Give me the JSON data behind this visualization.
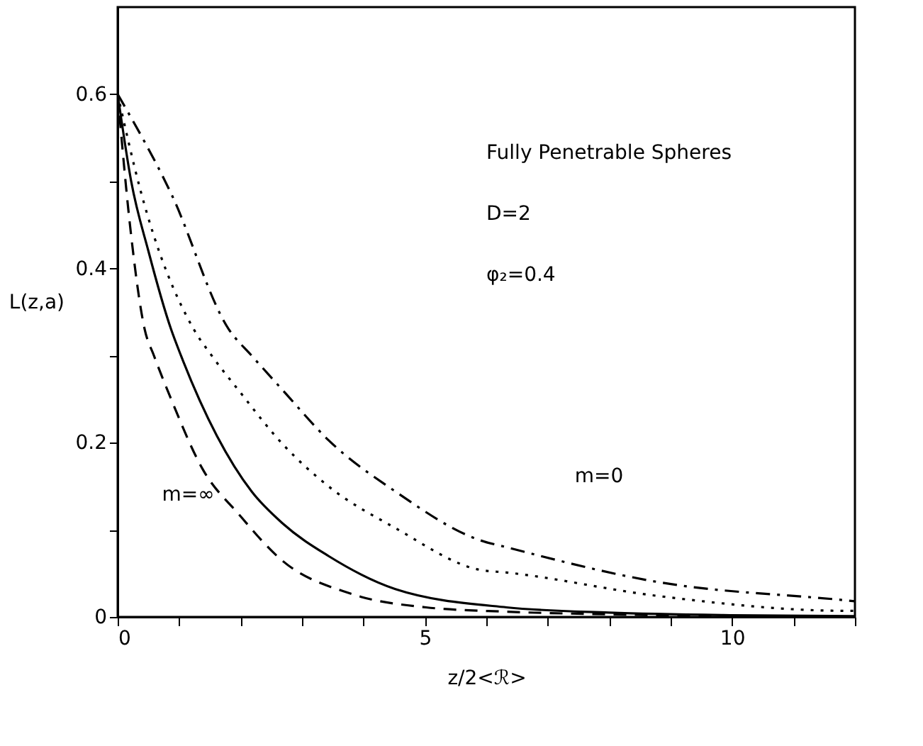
{
  "chart_data": {
    "type": "line",
    "xlabel": "z/2<ℛ>",
    "ylabel": "L(z,a)",
    "xlim": [
      0,
      12
    ],
    "ylim": [
      0,
      0.7
    ],
    "xticks": [
      0,
      {
        "value": 1,
        "label": null
      },
      {
        "value": 2,
        "label": null
      },
      {
        "value": 3,
        "label": null
      },
      {
        "value": 4,
        "label": null
      },
      5,
      {
        "value": 6,
        "label": null
      },
      {
        "value": 7,
        "label": null
      },
      {
        "value": 8,
        "label": null
      },
      {
        "value": 9,
        "label": null
      },
      10,
      {
        "value": 11,
        "label": null
      },
      {
        "value": 12,
        "label": null
      }
    ],
    "yticks": [
      0,
      {
        "value": 0.1,
        "label": null
      },
      0.2,
      {
        "value": 0.3,
        "label": null
      },
      0.4,
      {
        "value": 0.5,
        "label": null
      },
      0.6
    ],
    "grid": false,
    "marker": "none",
    "series": [
      {
        "color": "#000000",
        "line_style": "dashed",
        "x": [
          0,
          0.2,
          0.44,
          0.59,
          0.87,
          1.38,
          1.97,
          2.69,
          3.78,
          5.02,
          6.33,
          8,
          10,
          12
        ],
        "values": [
          0.6,
          0.45,
          0.33,
          0.3,
          0.25,
          0.17,
          0.118,
          0.064,
          0.027,
          0.011,
          0.006,
          0.003,
          0.001,
          0
        ]
      },
      {
        "color": "#000000",
        "line_style": "solid",
        "x": [
          0,
          0.22,
          0.5,
          0.87,
          1.03,
          2.18,
          2.69,
          3.43,
          4.52,
          6.33,
          8,
          10,
          12
        ],
        "values": [
          0.6,
          0.5,
          0.42,
          0.33,
          0.3,
          0.144,
          0.107,
          0.07,
          0.032,
          0.011,
          0.005,
          0.002,
          0.001
        ]
      },
      {
        "color": "#000000",
        "line_style": "dotted",
        "x": [
          0,
          0.37,
          1.24,
          1.53,
          1.97,
          2.69,
          3.43,
          4.52,
          5.9,
          6.33,
          8.8,
          11.86,
          12
        ],
        "values": [
          0.6,
          0.49,
          0.33,
          0.3,
          0.26,
          0.198,
          0.15,
          0.102,
          0.054,
          0.051,
          0.024,
          0.007,
          0.007
        ]
      },
      {
        "color": "#000000",
        "line_style": "dashdot",
        "x": [
          0,
          0.87,
          1.81,
          2.18,
          2.69,
          3.43,
          4.52,
          5.9,
          6.33,
          8.8,
          11.86,
          12
        ],
        "values": [
          0.6,
          0.486,
          0.33,
          0.3,
          0.26,
          0.203,
          0.144,
          0.088,
          0.08,
          0.04,
          0.019,
          0.018
        ]
      }
    ],
    "annotations": [
      "Fully Penetrable Spheres",
      "D=2",
      "φ₂=0.4",
      "m=∞",
      "m=0"
    ]
  }
}
